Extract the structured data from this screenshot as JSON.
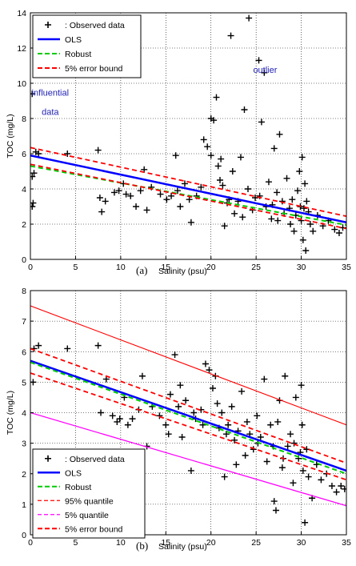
{
  "chart_data": [
    {
      "type": "scatter",
      "panel": "(a)",
      "xlabel": "Salinity (psu)",
      "ylabel": "TOC (mg/L)",
      "xlim": [
        0,
        35
      ],
      "ylim": [
        0,
        14
      ],
      "xticks": [
        0,
        5,
        10,
        15,
        20,
        25,
        30,
        35
      ],
      "yticks": [
        0,
        2,
        4,
        6,
        8,
        10,
        12,
        14
      ],
      "grid": true,
      "legend_position": "top-left",
      "legend": [
        {
          "label": ": Observed data",
          "kind": "marker",
          "color": "#000000"
        },
        {
          "label": "OLS",
          "kind": "solid",
          "color": "#0000ff"
        },
        {
          "label": "Robust",
          "kind": "dashed",
          "color": "#00cc00"
        },
        {
          "label": "5% error bound",
          "kind": "dashed",
          "color": "#ff0000"
        }
      ],
      "annotations": [
        {
          "text": "influential",
          "x": 2.2,
          "y": 9.3
        },
        {
          "text": "data",
          "x": 2.2,
          "y": 8.2
        },
        {
          "text": "outlier",
          "x": 26,
          "y": 10.6
        }
      ],
      "lines": [
        {
          "name": "OLS",
          "color": "#0000ff",
          "dash": "none",
          "width": 2.5,
          "x": [
            0,
            35
          ],
          "y": [
            5.9,
            2.1
          ]
        },
        {
          "name": "Robust",
          "color": "#00cc00",
          "dash": "6,4",
          "width": 2,
          "x": [
            0,
            35
          ],
          "y": [
            5.3,
            1.95
          ]
        },
        {
          "name": "5% error bound",
          "color": "#ff0000",
          "dash": "6,4",
          "width": 1.8,
          "x": [
            0,
            35
          ],
          "y": [
            6.35,
            2.45
          ]
        },
        {
          "name": "5% error bound",
          "color": "#ff0000",
          "dash": "6,4",
          "width": 1.8,
          "x": [
            0,
            35
          ],
          "y": [
            5.4,
            1.75
          ]
        }
      ],
      "points": [
        [
          0.2,
          9.4
        ],
        [
          0.3,
          3.2
        ],
        [
          0.2,
          3.0
        ],
        [
          0.2,
          4.7
        ],
        [
          0.4,
          4.9
        ],
        [
          0.6,
          6.1
        ],
        [
          0.9,
          6.0
        ],
        [
          4.1,
          6.0
        ],
        [
          7.5,
          6.2
        ],
        [
          7.7,
          3.5
        ],
        [
          7.9,
          2.7
        ],
        [
          8.3,
          3.3
        ],
        [
          9.3,
          3.8
        ],
        [
          9.8,
          3.9
        ],
        [
          10.3,
          4.3
        ],
        [
          10.6,
          3.7
        ],
        [
          11.1,
          3.6
        ],
        [
          11.7,
          3.0
        ],
        [
          12.2,
          3.9
        ],
        [
          12.6,
          5.1
        ],
        [
          12.9,
          2.8
        ],
        [
          13.4,
          4.1
        ],
        [
          14.4,
          3.7
        ],
        [
          15.1,
          3.4
        ],
        [
          15.6,
          3.6
        ],
        [
          16.1,
          5.9
        ],
        [
          16.3,
          3.9
        ],
        [
          16.6,
          3.0
        ],
        [
          17.1,
          4.3
        ],
        [
          17.6,
          3.4
        ],
        [
          17.8,
          2.1
        ],
        [
          18.4,
          3.6
        ],
        [
          18.9,
          4.1
        ],
        [
          19.2,
          6.8
        ],
        [
          19.6,
          6.4
        ],
        [
          20.0,
          5.9
        ],
        [
          20.3,
          7.9
        ],
        [
          20.6,
          9.2
        ],
        [
          20.8,
          5.3
        ],
        [
          21.1,
          5.7
        ],
        [
          21.3,
          4.2
        ],
        [
          21.5,
          1.9
        ],
        [
          21.8,
          3.2
        ],
        [
          22.0,
          3.4
        ],
        [
          22.4,
          5.0
        ],
        [
          22.6,
          2.6
        ],
        [
          23.0,
          3.3
        ],
        [
          23.3,
          5.8
        ],
        [
          23.7,
          8.5
        ],
        [
          24.2,
          13.7
        ],
        [
          24.6,
          2.8
        ],
        [
          24.9,
          3.5
        ],
        [
          25.3,
          11.3
        ],
        [
          25.6,
          7.8
        ],
        [
          25.9,
          10.6
        ],
        [
          26.1,
          3.0
        ],
        [
          26.4,
          4.4
        ],
        [
          26.7,
          2.3
        ],
        [
          27.0,
          6.3
        ],
        [
          27.3,
          3.8
        ],
        [
          27.6,
          7.1
        ],
        [
          27.9,
          3.3
        ],
        [
          28.1,
          2.6
        ],
        [
          28.4,
          4.6
        ],
        [
          28.7,
          2.9
        ],
        [
          29.0,
          3.4
        ],
        [
          29.2,
          1.6
        ],
        [
          29.4,
          2.5
        ],
        [
          29.6,
          3.9
        ],
        [
          29.8,
          5.0
        ],
        [
          30.0,
          2.2
        ],
        [
          30.1,
          5.8
        ],
        [
          30.2,
          1.1
        ],
        [
          30.3,
          2.9
        ],
        [
          30.4,
          4.3
        ],
        [
          30.6,
          3.3
        ],
        [
          30.5,
          0.5
        ],
        [
          30.8,
          2.7
        ],
        [
          31.0,
          2.0
        ],
        [
          31.3,
          1.6
        ],
        [
          31.8,
          2.5
        ],
        [
          32.4,
          1.9
        ],
        [
          33.0,
          2.2
        ],
        [
          33.7,
          1.7
        ],
        [
          34.2,
          1.5
        ],
        [
          34.6,
          1.8
        ],
        [
          22.2,
          12.7
        ],
        [
          20.0,
          8.0
        ],
        [
          26.8,
          3.1
        ],
        [
          27.4,
          2.2
        ],
        [
          28.8,
          2.0
        ],
        [
          29.9,
          3.0
        ],
        [
          25.4,
          3.6
        ],
        [
          24.1,
          4.0
        ],
        [
          23.5,
          2.4
        ],
        [
          21.0,
          4.5
        ]
      ]
    },
    {
      "type": "scatter",
      "panel": "(b)",
      "xlabel": "Salinity (psu)",
      "ylabel": "TOC (mg/L)",
      "xlim": [
        0,
        35
      ],
      "ylim": [
        0,
        8
      ],
      "xticks": [
        0,
        5,
        10,
        15,
        20,
        25,
        30,
        35
      ],
      "yticks": [
        0,
        1,
        2,
        3,
        4,
        5,
        6,
        7,
        8
      ],
      "grid": true,
      "legend_position": "bottom-left",
      "legend": [
        {
          "label": ": Observed data",
          "kind": "marker",
          "color": "#000000"
        },
        {
          "label": "OLS",
          "kind": "solid",
          "color": "#0000ff"
        },
        {
          "label": "Robust",
          "kind": "dashed",
          "color": "#00cc00"
        },
        {
          "label": "95% quantile",
          "kind": "dashed-thin",
          "color": "#ff0000"
        },
        {
          "label": "5% quantile",
          "kind": "dashed-thin",
          "color": "#ff00ff"
        },
        {
          "label": "5% error bound",
          "kind": "dashed",
          "color": "#ff0000"
        }
      ],
      "lines": [
        {
          "name": "OLS",
          "color": "#0000ff",
          "dash": "none",
          "width": 2.5,
          "x": [
            0,
            35
          ],
          "y": [
            5.7,
            2.1
          ]
        },
        {
          "name": "Robust",
          "color": "#00cc00",
          "dash": "6,4",
          "width": 2,
          "x": [
            0,
            35
          ],
          "y": [
            5.65,
            2.0
          ]
        },
        {
          "name": "95% quantile",
          "color": "#ff0000",
          "dash": "none",
          "width": 1.1,
          "x": [
            0,
            35
          ],
          "y": [
            7.5,
            3.6
          ]
        },
        {
          "name": "5% quantile",
          "color": "#ff00ff",
          "dash": "none",
          "width": 1.3,
          "x": [
            0,
            35
          ],
          "y": [
            4.0,
            0.95
          ]
        },
        {
          "name": "5% error bound",
          "color": "#ff0000",
          "dash": "6,4",
          "width": 1.8,
          "x": [
            0,
            35
          ],
          "y": [
            6.1,
            2.35
          ]
        },
        {
          "name": "5% error bound",
          "color": "#ff0000",
          "dash": "6,4",
          "width": 1.8,
          "x": [
            0,
            35
          ],
          "y": [
            5.3,
            1.8
          ]
        }
      ],
      "points": [
        [
          0.3,
          5.0
        ],
        [
          0.4,
          6.1
        ],
        [
          0.9,
          6.2
        ],
        [
          4.1,
          6.1
        ],
        [
          7.5,
          6.2
        ],
        [
          7.8,
          4.0
        ],
        [
          8.4,
          5.1
        ],
        [
          9.1,
          3.9
        ],
        [
          9.6,
          3.7
        ],
        [
          9.9,
          3.8
        ],
        [
          10.4,
          4.5
        ],
        [
          10.8,
          3.6
        ],
        [
          11.3,
          3.8
        ],
        [
          12.0,
          4.1
        ],
        [
          12.4,
          5.2
        ],
        [
          12.9,
          2.9
        ],
        [
          13.5,
          4.2
        ],
        [
          14.3,
          3.9
        ],
        [
          15.0,
          3.6
        ],
        [
          15.5,
          4.6
        ],
        [
          16.0,
          5.9
        ],
        [
          16.4,
          4.2
        ],
        [
          16.8,
          3.2
        ],
        [
          17.2,
          4.4
        ],
        [
          17.8,
          2.1
        ],
        [
          18.3,
          3.8
        ],
        [
          18.9,
          4.1
        ],
        [
          19.4,
          5.6
        ],
        [
          19.8,
          5.4
        ],
        [
          20.2,
          4.8
        ],
        [
          20.5,
          5.2
        ],
        [
          20.9,
          3.5
        ],
        [
          21.2,
          4.0
        ],
        [
          21.5,
          1.9
        ],
        [
          21.9,
          3.6
        ],
        [
          22.3,
          4.2
        ],
        [
          22.6,
          3.1
        ],
        [
          23.0,
          3.4
        ],
        [
          23.4,
          4.7
        ],
        [
          23.8,
          2.6
        ],
        [
          24.3,
          3.3
        ],
        [
          24.7,
          2.8
        ],
        [
          25.1,
          3.9
        ],
        [
          25.5,
          3.2
        ],
        [
          25.9,
          5.1
        ],
        [
          26.2,
          2.4
        ],
        [
          26.6,
          3.6
        ],
        [
          27.0,
          1.1
        ],
        [
          27.2,
          0.8
        ],
        [
          27.6,
          4.4
        ],
        [
          27.9,
          2.2
        ],
        [
          28.2,
          5.2
        ],
        [
          28.5,
          2.9
        ],
        [
          28.8,
          3.3
        ],
        [
          29.1,
          1.7
        ],
        [
          29.4,
          4.5
        ],
        [
          29.7,
          2.5
        ],
        [
          30.0,
          4.9
        ],
        [
          30.1,
          3.6
        ],
        [
          30.2,
          2.1
        ],
        [
          30.4,
          0.4
        ],
        [
          30.6,
          2.8
        ],
        [
          30.8,
          1.9
        ],
        [
          31.2,
          1.2
        ],
        [
          31.7,
          2.3
        ],
        [
          32.2,
          1.8
        ],
        [
          32.8,
          2.0
        ],
        [
          33.4,
          1.6
        ],
        [
          33.9,
          1.4
        ],
        [
          34.4,
          1.6
        ],
        [
          34.8,
          1.5
        ],
        [
          26.9,
          2.9
        ],
        [
          27.4,
          3.7
        ],
        [
          28.0,
          2.5
        ],
        [
          29.2,
          3.0
        ],
        [
          29.9,
          2.7
        ],
        [
          25.2,
          3.0
        ],
        [
          24.0,
          3.7
        ],
        [
          22.8,
          2.3
        ],
        [
          21.7,
          3.3
        ],
        [
          20.7,
          4.3
        ],
        [
          19.1,
          3.6
        ],
        [
          18.1,
          4.0
        ],
        [
          16.6,
          4.9
        ],
        [
          15.3,
          3.3
        ]
      ]
    }
  ]
}
